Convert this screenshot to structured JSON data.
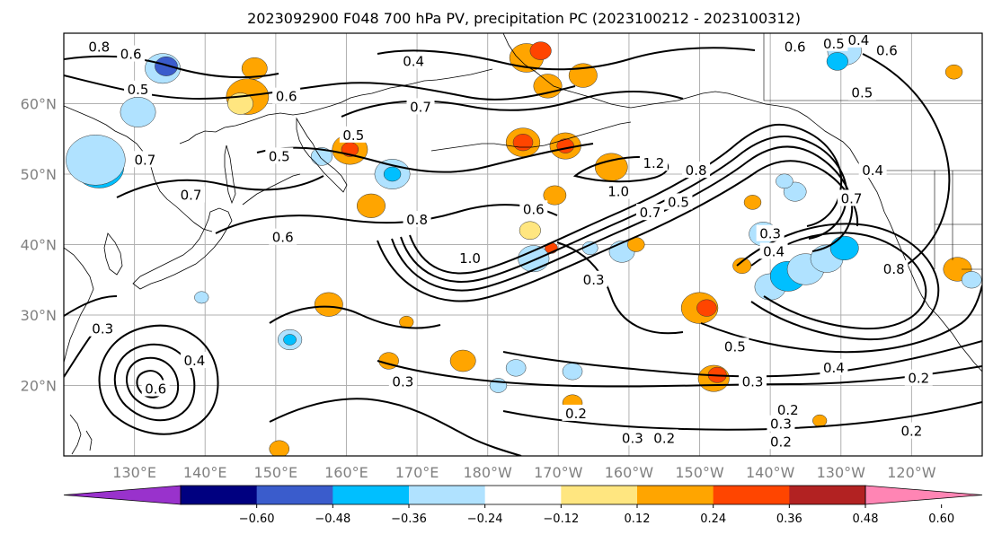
{
  "title": "2023092900 F048 700 hPa PV, precipitation PC (2023100212 - 2023100312)",
  "chart_data": {
    "type": "contour-map",
    "map": {
      "lat_ticks": [
        {
          "lat": 60,
          "label": "60°N"
        },
        {
          "lat": 50,
          "label": "50°N"
        },
        {
          "lat": 40,
          "label": "40°N"
        },
        {
          "lat": 30,
          "label": "30°N"
        },
        {
          "lat": 20,
          "label": "20°N"
        }
      ],
      "lon_ticks": [
        {
          "lon": 130,
          "label": "130°E"
        },
        {
          "lon": 140,
          "label": "140°E"
        },
        {
          "lon": 150,
          "label": "150°E"
        },
        {
          "lon": 160,
          "label": "160°E"
        },
        {
          "lon": 170,
          "label": "170°E"
        },
        {
          "lon": 180,
          "label": "180°W"
        },
        {
          "lon": 190,
          "label": "170°W"
        },
        {
          "lon": 200,
          "label": "160°W"
        },
        {
          "lon": 210,
          "label": "150°W"
        },
        {
          "lon": 220,
          "label": "140°W"
        },
        {
          "lon": 230,
          "label": "130°W"
        },
        {
          "lon": 240,
          "label": "120°W"
        }
      ],
      "lon_range": [
        120,
        250
      ],
      "lat_range": [
        10,
        70
      ],
      "grid": true
    },
    "contour_field": "700 hPa PV",
    "contour_labels": [
      {
        "text": "0.8",
        "lon": 125.0,
        "lat": 68.0
      },
      {
        "text": "0.6",
        "lon": 129.5,
        "lat": 67.0
      },
      {
        "text": "0.5",
        "lon": 130.5,
        "lat": 62.0
      },
      {
        "text": "0.7",
        "lon": 131.5,
        "lat": 52.0
      },
      {
        "text": "0.7",
        "lon": 138.0,
        "lat": 47.0
      },
      {
        "text": "0.6",
        "lon": 151.5,
        "lat": 61.0
      },
      {
        "text": "0.5",
        "lon": 150.5,
        "lat": 52.5
      },
      {
        "text": "0.5",
        "lon": 161.0,
        "lat": 55.5
      },
      {
        "text": "0.4",
        "lon": 169.5,
        "lat": 66.0
      },
      {
        "text": "0.7",
        "lon": 170.5,
        "lat": 59.5
      },
      {
        "text": "0.6",
        "lon": 151.0,
        "lat": 41.0
      },
      {
        "text": "0.8",
        "lon": 170.0,
        "lat": 43.5
      },
      {
        "text": "1.0",
        "lon": 177.5,
        "lat": 38.0
      },
      {
        "text": "0.6",
        "lon": 186.5,
        "lat": 45.0
      },
      {
        "text": "1.0",
        "lon": 198.5,
        "lat": 47.5
      },
      {
        "text": "1.2",
        "lon": 203.5,
        "lat": 51.5
      },
      {
        "text": "0.7",
        "lon": 203.0,
        "lat": 44.5
      },
      {
        "text": "0.5",
        "lon": 207.0,
        "lat": 46.0
      },
      {
        "text": "0.8",
        "lon": 209.5,
        "lat": 50.5
      },
      {
        "text": "0.3",
        "lon": 220.0,
        "lat": 41.5
      },
      {
        "text": "0.4",
        "lon": 220.5,
        "lat": 39.0
      },
      {
        "text": "0.3",
        "lon": 195.0,
        "lat": 35.0
      },
      {
        "text": "0.7",
        "lon": 231.5,
        "lat": 46.5
      },
      {
        "text": "0.4",
        "lon": 234.5,
        "lat": 50.5
      },
      {
        "text": "0.5",
        "lon": 233.0,
        "lat": 61.5
      },
      {
        "text": "0.6",
        "lon": 236.5,
        "lat": 67.5
      },
      {
        "text": "0.5",
        "lon": 229.0,
        "lat": 68.5
      },
      {
        "text": "0.4",
        "lon": 232.5,
        "lat": 69.0
      },
      {
        "text": "0.6",
        "lon": 223.5,
        "lat": 68.0
      },
      {
        "text": "0.3",
        "lon": 125.5,
        "lat": 28.0
      },
      {
        "text": "0.4",
        "lon": 138.5,
        "lat": 23.5
      },
      {
        "text": "0.6",
        "lon": 133.0,
        "lat": 19.5
      },
      {
        "text": "0.3",
        "lon": 168.0,
        "lat": 20.5
      },
      {
        "text": "0.2",
        "lon": 192.5,
        "lat": 16.0
      },
      {
        "text": "0.5",
        "lon": 215.0,
        "lat": 25.5
      },
      {
        "text": "0.3",
        "lon": 217.5,
        "lat": 20.5
      },
      {
        "text": "0.4",
        "lon": 229.0,
        "lat": 22.5
      },
      {
        "text": "0.2",
        "lon": 222.5,
        "lat": 16.5
      },
      {
        "text": "0.3",
        "lon": 221.5,
        "lat": 14.5
      },
      {
        "text": "0.2",
        "lon": 221.5,
        "lat": 12.0
      },
      {
        "text": "0.3",
        "lon": 200.5,
        "lat": 12.5
      },
      {
        "text": "0.2",
        "lon": 205.0,
        "lat": 12.5
      },
      {
        "text": "0.2",
        "lon": 241.0,
        "lat": 21.0
      },
      {
        "text": "0.2",
        "lon": 240.0,
        "lat": 13.5
      },
      {
        "text": "0.8",
        "lon": 237.5,
        "lat": 36.5
      }
    ],
    "shading_field": "precipitation PC",
    "colorbar": {
      "ticks": [
        "−0.60",
        "−0.48",
        "−0.36",
        "−0.24",
        "−0.12",
        "0.12",
        "0.24",
        "0.36",
        "0.48",
        "0.60"
      ],
      "colors": [
        "#9932cc",
        "#000080",
        "#3a5ccc",
        "#00bfff",
        "#b0e2ff",
        "#ffffff",
        "#ffe680",
        "#ffa500",
        "#ff4500",
        "#b22222",
        "#ff85b4"
      ]
    },
    "blobs": [
      {
        "lon": 124.5,
        "lat": 50.5,
        "r": 2.2,
        "level": 2
      },
      {
        "lon": 125.0,
        "lat": 51.0,
        "r": 3.5,
        "level": 3
      },
      {
        "lon": 124.5,
        "lat": 52.0,
        "r": 4.2,
        "level": 4
      },
      {
        "lon": 134.0,
        "lat": 65.0,
        "r": 2.5,
        "level": 4
      },
      {
        "lon": 134.5,
        "lat": 65.3,
        "r": 1.6,
        "level": 2
      },
      {
        "lon": 130.5,
        "lat": 58.8,
        "r": 2.5,
        "level": 4
      },
      {
        "lon": 146.0,
        "lat": 61.0,
        "r": 3.0,
        "level": 7
      },
      {
        "lon": 145.0,
        "lat": 60.0,
        "r": 1.8,
        "level": 6
      },
      {
        "lon": 147.0,
        "lat": 65.0,
        "r": 1.8,
        "level": 7
      },
      {
        "lon": 160.5,
        "lat": 53.5,
        "r": 2.5,
        "level": 7
      },
      {
        "lon": 160.5,
        "lat": 53.5,
        "r": 1.2,
        "level": 8
      },
      {
        "lon": 156.5,
        "lat": 52.5,
        "r": 1.5,
        "level": 4
      },
      {
        "lon": 166.5,
        "lat": 50.0,
        "r": 2.5,
        "level": 4
      },
      {
        "lon": 166.5,
        "lat": 50.0,
        "r": 1.2,
        "level": 3
      },
      {
        "lon": 163.5,
        "lat": 45.5,
        "r": 2.0,
        "level": 7
      },
      {
        "lon": 185.0,
        "lat": 54.5,
        "r": 2.4,
        "level": 7
      },
      {
        "lon": 185.0,
        "lat": 54.5,
        "r": 1.4,
        "level": 8
      },
      {
        "lon": 191.0,
        "lat": 54.0,
        "r": 2.2,
        "level": 7
      },
      {
        "lon": 191.0,
        "lat": 54.0,
        "r": 1.2,
        "level": 8
      },
      {
        "lon": 185.5,
        "lat": 66.5,
        "r": 2.4,
        "level": 7
      },
      {
        "lon": 187.5,
        "lat": 67.5,
        "r": 1.5,
        "level": 8
      },
      {
        "lon": 188.5,
        "lat": 62.5,
        "r": 2.0,
        "level": 7
      },
      {
        "lon": 193.5,
        "lat": 64.0,
        "r": 2.0,
        "level": 7
      },
      {
        "lon": 197.5,
        "lat": 51.0,
        "r": 2.3,
        "level": 7
      },
      {
        "lon": 189.5,
        "lat": 47.0,
        "r": 1.6,
        "level": 7
      },
      {
        "lon": 186.0,
        "lat": 42.0,
        "r": 1.5,
        "level": 6
      },
      {
        "lon": 186.5,
        "lat": 38.0,
        "r": 2.2,
        "level": 4
      },
      {
        "lon": 199.0,
        "lat": 39.0,
        "r": 1.8,
        "level": 4
      },
      {
        "lon": 219.0,
        "lat": 41.5,
        "r": 2.0,
        "level": 4
      },
      {
        "lon": 223.5,
        "lat": 47.5,
        "r": 1.6,
        "level": 4
      },
      {
        "lon": 222.0,
        "lat": 49.0,
        "r": 1.2,
        "level": 4
      },
      {
        "lon": 217.5,
        "lat": 46.0,
        "r": 1.2,
        "level": 7
      },
      {
        "lon": 216.0,
        "lat": 37.0,
        "r": 1.3,
        "level": 7
      },
      {
        "lon": 220.0,
        "lat": 34.0,
        "r": 2.2,
        "level": 4
      },
      {
        "lon": 222.5,
        "lat": 35.5,
        "r": 2.5,
        "level": 3
      },
      {
        "lon": 225.0,
        "lat": 36.5,
        "r": 2.6,
        "level": 4
      },
      {
        "lon": 228.0,
        "lat": 38.0,
        "r": 2.3,
        "level": 4
      },
      {
        "lon": 230.5,
        "lat": 39.5,
        "r": 2.0,
        "level": 3
      },
      {
        "lon": 210.0,
        "lat": 31.0,
        "r": 2.6,
        "level": 7
      },
      {
        "lon": 211.0,
        "lat": 31.0,
        "r": 1.4,
        "level": 8
      },
      {
        "lon": 212.0,
        "lat": 21.0,
        "r": 2.2,
        "level": 7
      },
      {
        "lon": 212.5,
        "lat": 21.5,
        "r": 1.3,
        "level": 8
      },
      {
        "lon": 157.5,
        "lat": 31.5,
        "r": 2.0,
        "level": 7
      },
      {
        "lon": 152.0,
        "lat": 26.5,
        "r": 1.7,
        "level": 4
      },
      {
        "lon": 152.0,
        "lat": 26.5,
        "r": 0.9,
        "level": 3
      },
      {
        "lon": 166.0,
        "lat": 23.5,
        "r": 1.4,
        "level": 7
      },
      {
        "lon": 176.5,
        "lat": 23.5,
        "r": 1.8,
        "level": 7
      },
      {
        "lon": 184.0,
        "lat": 22.5,
        "r": 1.4,
        "level": 4
      },
      {
        "lon": 192.0,
        "lat": 22.0,
        "r": 1.4,
        "level": 4
      },
      {
        "lon": 181.5,
        "lat": 20.0,
        "r": 1.2,
        "level": 4
      },
      {
        "lon": 192.0,
        "lat": 17.5,
        "r": 1.4,
        "level": 7
      },
      {
        "lon": 139.5,
        "lat": 32.5,
        "r": 1.0,
        "level": 4
      },
      {
        "lon": 150.5,
        "lat": 11.0,
        "r": 1.4,
        "level": 7
      },
      {
        "lon": 230.5,
        "lat": 67.5,
        "r": 2.4,
        "level": 4
      },
      {
        "lon": 229.5,
        "lat": 66.0,
        "r": 1.5,
        "level": 3
      },
      {
        "lon": 246.5,
        "lat": 36.5,
        "r": 2.0,
        "level": 7
      },
      {
        "lon": 248.5,
        "lat": 35.0,
        "r": 1.4,
        "level": 4
      },
      {
        "lon": 227.0,
        "lat": 15.0,
        "r": 1.0,
        "level": 7
      },
      {
        "lon": 189.0,
        "lat": 39.5,
        "r": 0.9,
        "level": 8
      },
      {
        "lon": 194.5,
        "lat": 39.5,
        "r": 1.1,
        "level": 4
      },
      {
        "lon": 201.0,
        "lat": 40.0,
        "r": 1.2,
        "level": 7
      },
      {
        "lon": 168.5,
        "lat": 29.0,
        "r": 1.0,
        "level": 7
      },
      {
        "lon": 246.0,
        "lat": 64.5,
        "r": 1.2,
        "level": 7
      }
    ]
  }
}
